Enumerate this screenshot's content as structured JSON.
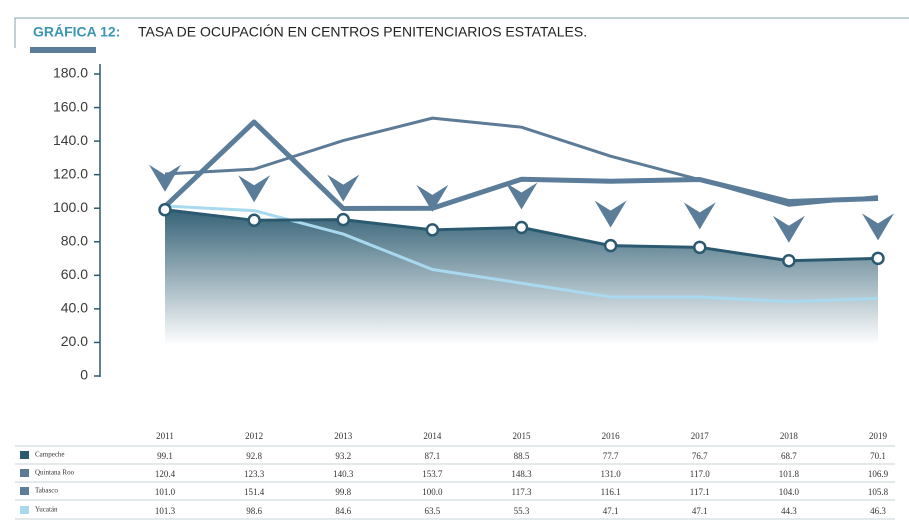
{
  "chart_data": {
    "type": "line",
    "title_label": "GRÁFICA 12:",
    "title": "TASA DE OCUPACIÓN EN CENTROS PENITENCIARIOS ESTATALES.",
    "categories": [
      "2011",
      "2012",
      "2013",
      "2014",
      "2015",
      "2016",
      "2017",
      "2018",
      "2019"
    ],
    "ylim": [
      0,
      180
    ],
    "yticks": [
      0,
      {
        "value": 20,
        "label": "20.0"
      },
      {
        "value": 40,
        "label": "40.0"
      },
      {
        "value": 60,
        "label": "60.0"
      },
      {
        "value": 80,
        "label": "80.0"
      },
      {
        "value": 100,
        "label": "100.0"
      },
      {
        "value": 120,
        "label": "120.0"
      },
      {
        "value": 140,
        "label": "140.0"
      },
      {
        "value": 160,
        "label": "160.0"
      },
      {
        "value": 180,
        "label": "180.0"
      }
    ],
    "series": [
      {
        "name": "Campeche",
        "color": "#2b5a70",
        "values": [
          99.1,
          92.8,
          93.2,
          87.1,
          88.5,
          77.7,
          76.7,
          68.7,
          70.1
        ],
        "value_labels": [
          "99.1",
          "92.8",
          "93.2",
          "87.1",
          "88.5",
          "77.7",
          "76.7",
          "68.7",
          "70.1"
        ]
      },
      {
        "name": "Quintana Roo",
        "color": "#5d7b96",
        "values": [
          120.4,
          123.3,
          140.3,
          153.7,
          148.3,
          131.0,
          117.0,
          101.8,
          106.9
        ],
        "value_labels": [
          "120.4",
          "123.3",
          "140.3",
          "153.7",
          "148.3",
          "131.0",
          "117.0",
          "101.8",
          "106.9"
        ]
      },
      {
        "name": "Tabasco",
        "color": "#5b7d99",
        "values": [
          101.0,
          151.4,
          99.8,
          100.0,
          117.3,
          116.1,
          117.1,
          104.0,
          105.8
        ],
        "value_labels": [
          "101.0",
          "151.4",
          "99.8",
          "100.0",
          "117.3",
          "116.1",
          "117.1",
          "104.0",
          "105.8"
        ]
      },
      {
        "name": "Yucatán",
        "color": "#a9d9ef",
        "values": [
          101.3,
          98.6,
          84.6,
          63.5,
          55.3,
          47.1,
          47.1,
          44.3,
          46.3
        ],
        "value_labels": [
          "101.3",
          "98.6",
          "84.6",
          "63.5",
          "55.3",
          "47.1",
          "47.1",
          "44.3",
          "46.3"
        ]
      }
    ]
  }
}
